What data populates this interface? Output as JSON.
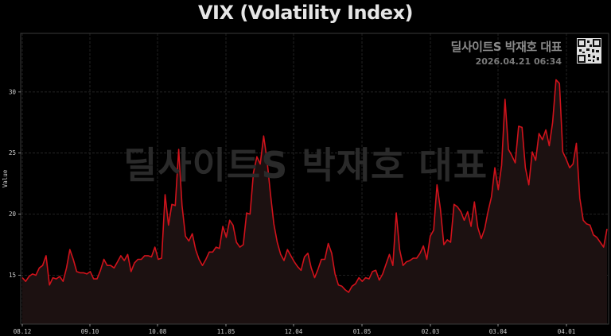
{
  "header": {
    "title": "VIX (Volatility Index)"
  },
  "branding": {
    "name": "딜사이트S 박재호 대표",
    "timestamp": "2026.04.21 06:34",
    "watermark": "딜사이트S 박재호 대표",
    "qr_icon": "qr-code-icon"
  },
  "colors": {
    "background": "#000000",
    "line": "#d0121b",
    "fill": "#1c1111",
    "grid": "#2b2b2b",
    "frame": "#3a3a3a"
  },
  "chart_data": {
    "type": "area",
    "title": "VIX (Volatility Index)",
    "xlabel": "",
    "ylabel": "Value",
    "ylim": [
      11.0,
      34.8
    ],
    "yticks": [
      15,
      20,
      25,
      30
    ],
    "xtick_labels": [
      "08.12",
      "09.10",
      "10.08",
      "11.05",
      "12.04",
      "01.05",
      "02.03",
      "03.04",
      "04.01"
    ],
    "grid": true,
    "legend": null,
    "series": [
      {
        "name": "VIX",
        "values": [
          14.8,
          14.5,
          14.9,
          15.1,
          15.0,
          15.6,
          15.8,
          16.6,
          14.2,
          14.8,
          14.7,
          14.9,
          14.5,
          15.6,
          17.1,
          16.3,
          15.3,
          15.2,
          15.2,
          15.1,
          15.3,
          14.7,
          14.7,
          15.4,
          16.3,
          15.8,
          15.8,
          15.6,
          16.1,
          16.6,
          16.2,
          16.7,
          15.3,
          16.0,
          16.3,
          16.3,
          16.6,
          16.6,
          16.5,
          17.3,
          16.3,
          16.4,
          21.6,
          19.1,
          20.8,
          20.7,
          25.3,
          20.7,
          18.2,
          17.8,
          18.4,
          17.1,
          16.3,
          15.8,
          16.3,
          16.9,
          16.9,
          17.3,
          17.2,
          19.0,
          18.1,
          19.5,
          19.1,
          17.7,
          17.3,
          17.5,
          20.1,
          20.0,
          23.4,
          24.7,
          24.1,
          26.4,
          24.4,
          21.7,
          19.2,
          17.7,
          16.7,
          16.2,
          17.1,
          16.6,
          16.1,
          15.7,
          15.4,
          16.5,
          16.8,
          15.6,
          14.8,
          15.5,
          16.3,
          16.3,
          17.6,
          16.8,
          15.1,
          14.2,
          14.1,
          13.8,
          13.6,
          14.1,
          14.3,
          14.8,
          14.5,
          14.8,
          14.7,
          15.3,
          15.4,
          14.6,
          15.1,
          15.9,
          16.7,
          15.8,
          20.1,
          17.1,
          15.8,
          16.1,
          16.2,
          16.4,
          16.4,
          16.8,
          17.4,
          16.3,
          18.2,
          18.7,
          22.4,
          20.4,
          17.5,
          17.9,
          17.7,
          20.8,
          20.6,
          20.2,
          19.5,
          20.2,
          19.0,
          21.0,
          18.9,
          18.0,
          18.8,
          20.2,
          21.4,
          23.8,
          22.0,
          24.0,
          29.4,
          25.3,
          24.8,
          24.2,
          27.2,
          27.1,
          23.8,
          22.4,
          25.1,
          24.4,
          26.6,
          26.1,
          26.9,
          25.6,
          27.5,
          31.0,
          30.7,
          25.1,
          24.5,
          23.8,
          24.1,
          25.8,
          21.3,
          19.5,
          19.2,
          19.1,
          18.3,
          18.1,
          17.7,
          17.3,
          18.8
        ]
      }
    ]
  }
}
